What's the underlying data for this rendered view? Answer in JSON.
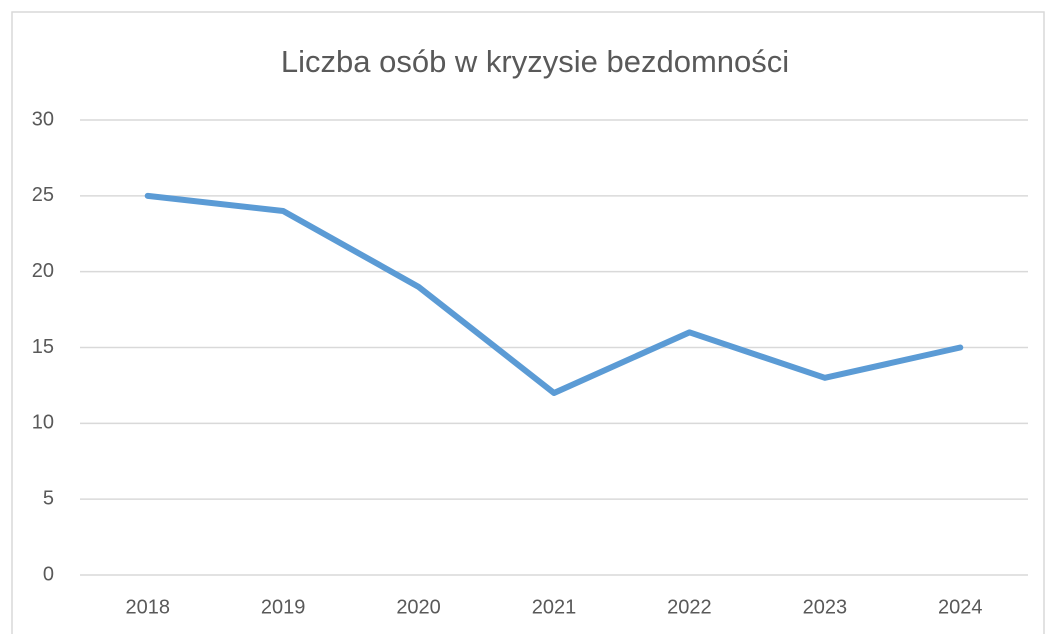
{
  "chart_data": {
    "type": "line",
    "title": "Liczba osób w kryzysie bezdomności",
    "categories": [
      "2018",
      "2019",
      "2020",
      "2021",
      "2022",
      "2023",
      "2024"
    ],
    "values": [
      25,
      24,
      19,
      12,
      16,
      13,
      15
    ],
    "color": "#5b9bd5",
    "ylim": [
      0,
      30
    ],
    "yticks": [
      0,
      5,
      10,
      15,
      20,
      25,
      30
    ],
    "grid": true
  }
}
